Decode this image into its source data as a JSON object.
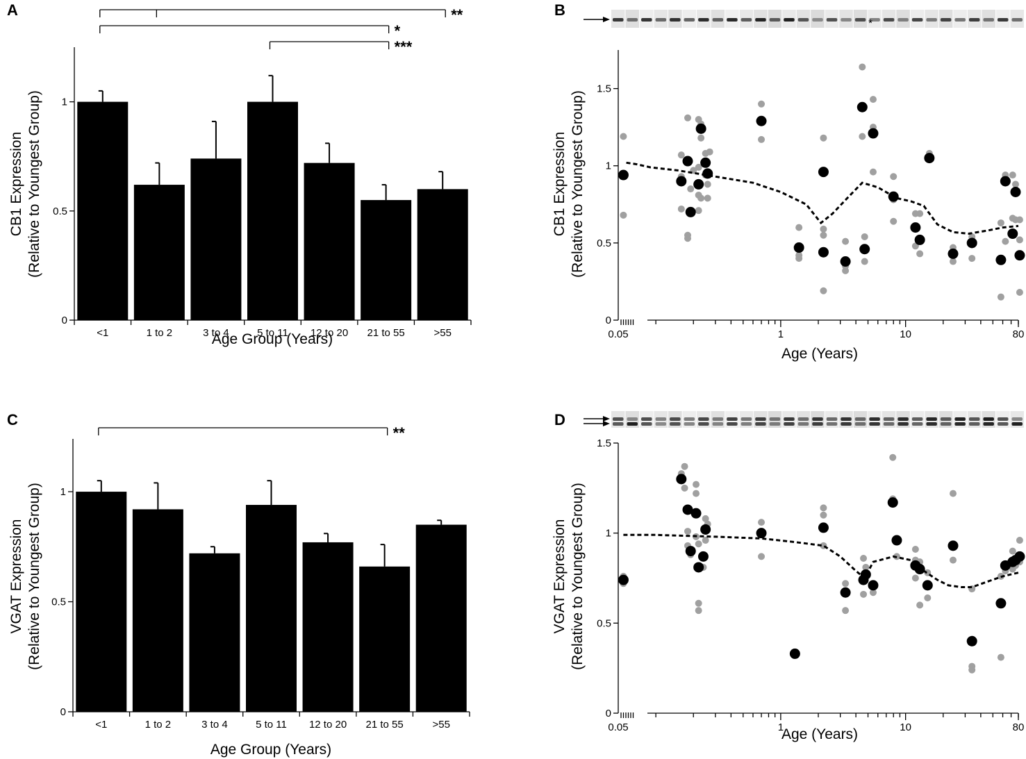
{
  "chart_data": [
    {
      "panel": "A",
      "type": "bar",
      "categories": [
        "<1",
        "1 to 2",
        "3 to 4",
        "5 to 11",
        "12 to 20",
        "21 to 55",
        ">55"
      ],
      "values": [
        1.0,
        0.62,
        0.74,
        1.0,
        0.72,
        0.55,
        0.6
      ],
      "errors": [
        0.05,
        0.1,
        0.17,
        0.12,
        0.09,
        0.07,
        0.08
      ],
      "xlabel": "Age Group (Years)",
      "ylabel_line1": "CB1 Expression",
      "ylabel_line2": "(Relative to Youngest Group)",
      "ylim": [
        0,
        1.25
      ],
      "yticks": [
        {
          "value": 0,
          "label": "0"
        },
        {
          "value": 0.5,
          "label": "0.5"
        },
        {
          "value": 1,
          "label": "1"
        }
      ],
      "significance": [
        {
          "from": 0,
          "to": 6,
          "label": "**",
          "branch_at": 1
        },
        {
          "from": 0,
          "to": 5,
          "label": "*"
        },
        {
          "from": 3,
          "to": 5,
          "label": "***"
        }
      ]
    },
    {
      "panel": "B",
      "type": "scatter",
      "xscale": "log",
      "xlim": [
        0.05,
        80
      ],
      "ylim": [
        0,
        1.75
      ],
      "xlabel": "Age (Years)",
      "ylabel_line1": "CB1 Expression",
      "ylabel_line2": "(Relative to Youngest Group)",
      "xticks": [
        {
          "value": 0.05,
          "label": "0.05"
        },
        {
          "value": 1,
          "label": "1"
        },
        {
          "value": 10,
          "label": "10"
        },
        {
          "value": 80,
          "label": "80"
        }
      ],
      "yticks": [
        {
          "value": 0,
          "label": "0"
        },
        {
          "value": 0.5,
          "label": "0.5"
        },
        {
          "value": 1,
          "label": "1"
        },
        {
          "value": 1.5,
          "label": "1.5"
        }
      ],
      "blot_marker": "*",
      "means": [
        [
          0.055,
          0.94
        ],
        [
          0.16,
          0.9
        ],
        [
          0.18,
          1.03
        ],
        [
          0.19,
          0.7
        ],
        [
          0.22,
          0.88
        ],
        [
          0.23,
          1.24
        ],
        [
          0.25,
          1.02
        ],
        [
          0.26,
          0.95
        ],
        [
          0.7,
          1.29
        ],
        [
          1.4,
          0.47
        ],
        [
          2.2,
          0.96
        ],
        [
          2.2,
          0.44
        ],
        [
          3.3,
          0.38
        ],
        [
          4.5,
          1.38
        ],
        [
          4.7,
          0.46
        ],
        [
          5.5,
          1.21
        ],
        [
          8.0,
          0.8
        ],
        [
          12,
          0.6
        ],
        [
          13,
          0.52
        ],
        [
          15.5,
          1.05
        ],
        [
          24,
          0.43
        ],
        [
          34,
          0.5
        ],
        [
          58,
          0.39
        ],
        [
          63,
          0.9
        ],
        [
          72,
          0.56
        ],
        [
          76,
          0.83
        ],
        [
          82,
          0.42
        ]
      ],
      "replicates": [
        [
          0.055,
          1.19
        ],
        [
          0.055,
          0.68
        ],
        [
          0.055,
          0.95
        ],
        [
          0.16,
          1.07
        ],
        [
          0.16,
          0.93
        ],
        [
          0.16,
          0.72
        ],
        [
          0.18,
          1.31
        ],
        [
          0.18,
          0.53
        ],
        [
          0.18,
          0.55
        ],
        [
          0.18,
          1.04
        ],
        [
          0.19,
          0.85
        ],
        [
          0.2,
          0.97
        ],
        [
          0.22,
          1.3
        ],
        [
          0.22,
          0.99
        ],
        [
          0.22,
          0.71
        ],
        [
          0.22,
          0.81
        ],
        [
          0.23,
          1.27
        ],
        [
          0.23,
          1.18
        ],
        [
          0.23,
          0.79
        ],
        [
          0.25,
          1.08
        ],
        [
          0.25,
          0.94
        ],
        [
          0.26,
          0.79
        ],
        [
          0.26,
          0.88
        ],
        [
          0.27,
          1.09
        ],
        [
          0.7,
          1.4
        ],
        [
          0.7,
          1.17
        ],
        [
          1.4,
          0.6
        ],
        [
          1.4,
          0.4
        ],
        [
          1.4,
          0.42
        ],
        [
          2.2,
          1.18
        ],
        [
          2.2,
          0.59
        ],
        [
          2.2,
          0.55
        ],
        [
          2.2,
          0.19
        ],
        [
          3.3,
          0.51
        ],
        [
          3.3,
          0.35
        ],
        [
          3.3,
          0.32
        ],
        [
          4.5,
          1.64
        ],
        [
          4.5,
          1.19
        ],
        [
          4.7,
          0.54
        ],
        [
          4.7,
          0.38
        ],
        [
          5.5,
          1.43
        ],
        [
          5.5,
          1.25
        ],
        [
          5.5,
          0.96
        ],
        [
          8.0,
          0.93
        ],
        [
          8.0,
          0.78
        ],
        [
          8.0,
          0.64
        ],
        [
          12,
          0.69
        ],
        [
          12,
          0.48
        ],
        [
          13,
          0.69
        ],
        [
          13,
          0.43
        ],
        [
          15.5,
          1.08
        ],
        [
          24,
          0.47
        ],
        [
          24,
          0.38
        ],
        [
          34,
          0.54
        ],
        [
          34,
          0.4
        ],
        [
          58,
          0.63
        ],
        [
          58,
          0.15
        ],
        [
          63,
          0.94
        ],
        [
          63,
          0.51
        ],
        [
          72,
          0.94
        ],
        [
          72,
          0.66
        ],
        [
          76,
          0.88
        ],
        [
          76,
          0.65
        ],
        [
          82,
          0.65
        ],
        [
          82,
          0.52
        ],
        [
          82,
          0.18
        ]
      ],
      "trend": [
        [
          0.058,
          1.02
        ],
        [
          0.07,
          1.01
        ],
        [
          0.09,
          0.99
        ],
        [
          0.15,
          0.97
        ],
        [
          0.3,
          0.93
        ],
        [
          0.6,
          0.89
        ],
        [
          1.0,
          0.83
        ],
        [
          1.6,
          0.75
        ],
        [
          2.1,
          0.63
        ],
        [
          2.6,
          0.69
        ],
        [
          3.5,
          0.8
        ],
        [
          4.5,
          0.89
        ],
        [
          6.0,
          0.86
        ],
        [
          8.5,
          0.79
        ],
        [
          11,
          0.77
        ],
        [
          14,
          0.74
        ],
        [
          18,
          0.62
        ],
        [
          24,
          0.57
        ],
        [
          32,
          0.56
        ],
        [
          45,
          0.58
        ],
        [
          60,
          0.6
        ],
        [
          80,
          0.61
        ]
      ]
    },
    {
      "panel": "C",
      "type": "bar",
      "categories": [
        "<1",
        "1 to 2",
        "3 to 4",
        "5 to 11",
        "12 to 20",
        "21 to 55",
        ">55"
      ],
      "values": [
        1.0,
        0.92,
        0.72,
        0.94,
        0.77,
        0.66,
        0.85
      ],
      "errors": [
        0.05,
        0.12,
        0.03,
        0.11,
        0.04,
        0.1,
        0.02
      ],
      "xlabel": "Age Group (Years)",
      "ylabel_line1": "VGAT Expression",
      "ylabel_line2": "(Relative to Youngest Group)",
      "ylim": [
        0,
        1.24
      ],
      "yticks": [
        {
          "value": 0,
          "label": "0"
        },
        {
          "value": 0.5,
          "label": "0.5"
        },
        {
          "value": 1,
          "label": "1"
        }
      ],
      "significance": [
        {
          "from": 0,
          "to": 5,
          "label": "**"
        }
      ]
    },
    {
      "panel": "D",
      "type": "scatter",
      "xscale": "log",
      "xlim": [
        0.05,
        80
      ],
      "ylim": [
        0,
        1.5
      ],
      "xlabel": "Age (Years)",
      "ylabel_line1": "VGAT Expression",
      "ylabel_line2": "(Relative to Youngest Group)",
      "xticks": [
        {
          "value": 0.05,
          "label": "0.05"
        },
        {
          "value": 1,
          "label": "1"
        },
        {
          "value": 10,
          "label": "10"
        },
        {
          "value": 80,
          "label": "80"
        }
      ],
      "yticks": [
        {
          "value": 0,
          "label": "0"
        },
        {
          "value": 0.5,
          "label": "0.5"
        },
        {
          "value": 1,
          "label": "1"
        },
        {
          "value": 1.5,
          "label": "1.5"
        }
      ],
      "blot_marker": "",
      "means": [
        [
          0.055,
          0.74
        ],
        [
          0.16,
          1.3
        ],
        [
          0.18,
          1.13
        ],
        [
          0.19,
          0.9
        ],
        [
          0.21,
          1.11
        ],
        [
          0.22,
          0.81
        ],
        [
          0.24,
          0.87
        ],
        [
          0.25,
          1.02
        ],
        [
          0.7,
          1.0
        ],
        [
          1.3,
          0.33
        ],
        [
          2.2,
          1.03
        ],
        [
          3.3,
          0.67
        ],
        [
          4.6,
          0.74
        ],
        [
          4.8,
          0.77
        ],
        [
          5.5,
          0.71
        ],
        [
          7.9,
          1.17
        ],
        [
          8.5,
          0.96
        ],
        [
          12,
          0.82
        ],
        [
          13,
          0.8
        ],
        [
          15,
          0.71
        ],
        [
          24,
          0.93
        ],
        [
          34,
          0.4
        ],
        [
          58,
          0.61
        ],
        [
          63,
          0.82
        ],
        [
          72,
          0.84
        ],
        [
          76,
          0.85
        ],
        [
          82,
          0.87
        ]
      ],
      "replicates": [
        [
          0.055,
          0.76
        ],
        [
          0.055,
          0.72
        ],
        [
          0.16,
          1.33
        ],
        [
          0.17,
          1.37
        ],
        [
          0.17,
          1.25
        ],
        [
          0.18,
          1.01
        ],
        [
          0.18,
          0.93
        ],
        [
          0.19,
          0.88
        ],
        [
          0.21,
          1.27
        ],
        [
          0.21,
          1.22
        ],
        [
          0.21,
          0.98
        ],
        [
          0.22,
          0.61
        ],
        [
          0.22,
          0.57
        ],
        [
          0.22,
          0.94
        ],
        [
          0.24,
          0.81
        ],
        [
          0.25,
          1.08
        ],
        [
          0.25,
          0.96
        ],
        [
          0.26,
          1.05
        ],
        [
          0.7,
          1.06
        ],
        [
          0.7,
          0.87
        ],
        [
          2.2,
          1.14
        ],
        [
          2.2,
          1.1
        ],
        [
          2.2,
          0.93
        ],
        [
          3.3,
          0.72
        ],
        [
          3.3,
          0.57
        ],
        [
          4.6,
          0.86
        ],
        [
          4.6,
          0.66
        ],
        [
          4.8,
          0.81
        ],
        [
          5.5,
          0.67
        ],
        [
          7.9,
          1.42
        ],
        [
          7.9,
          1.19
        ],
        [
          8.5,
          0.87
        ],
        [
          12,
          0.91
        ],
        [
          12,
          0.85
        ],
        [
          12,
          0.75
        ],
        [
          13,
          0.6
        ],
        [
          13,
          0.84
        ],
        [
          15,
          0.78
        ],
        [
          15,
          0.64
        ],
        [
          24,
          1.22
        ],
        [
          24,
          0.85
        ],
        [
          34,
          0.69
        ],
        [
          34,
          0.26
        ],
        [
          34,
          0.24
        ],
        [
          58,
          0.76
        ],
        [
          58,
          0.31
        ],
        [
          63,
          0.79
        ],
        [
          72,
          0.9
        ],
        [
          72,
          0.8
        ],
        [
          76,
          0.82
        ],
        [
          82,
          0.96
        ],
        [
          82,
          0.84
        ]
      ],
      "trend": [
        [
          0.055,
          0.99
        ],
        [
          0.1,
          0.99
        ],
        [
          0.3,
          0.98
        ],
        [
          0.7,
          0.97
        ],
        [
          1.3,
          0.95
        ],
        [
          2.2,
          0.93
        ],
        [
          3.0,
          0.87
        ],
        [
          4.0,
          0.79
        ],
        [
          4.7,
          0.75
        ],
        [
          5.5,
          0.84
        ],
        [
          8,
          0.87
        ],
        [
          11,
          0.85
        ],
        [
          14,
          0.79
        ],
        [
          18,
          0.74
        ],
        [
          22,
          0.71
        ],
        [
          28,
          0.7
        ],
        [
          34,
          0.7
        ],
        [
          45,
          0.73
        ],
        [
          60,
          0.76
        ],
        [
          80,
          0.78
        ]
      ]
    }
  ]
}
